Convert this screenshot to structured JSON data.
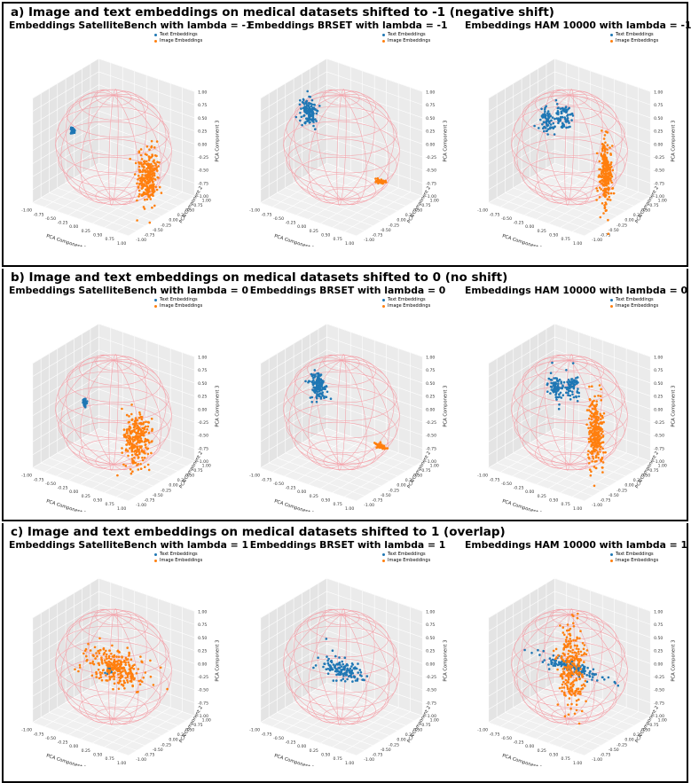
{
  "rows": [
    {
      "title": "a) Image and text embeddings on medical datasets shifted to -1  (negative shift)",
      "plots": [
        {
          "title": "Embeddings  SatelliteBench with lambda = -1",
          "text_center": [
            -0.85,
            0.0,
            0.05
          ],
          "text_spread": [
            0.02,
            0.02,
            0.03
          ],
          "image_center": [
            0.85,
            -0.2,
            -0.25
          ],
          "image_spread": [
            0.07,
            0.12,
            0.25
          ],
          "text_shape": "blob",
          "image_shape": "column"
        },
        {
          "title": "Embeddings  BRSET with lambda = -1",
          "text_center": [
            -0.75,
            0.1,
            0.4
          ],
          "text_spread": [
            0.08,
            0.05,
            0.12
          ],
          "image_center": [
            0.75,
            0.1,
            -0.45
          ],
          "image_spread": [
            0.06,
            0.02,
            0.02
          ],
          "text_shape": "bar",
          "image_shape": "bar"
        },
        {
          "title": "Embeddings  HAM 10000 with lambda = -1",
          "text_center": [
            -0.55,
            0.1,
            0.3
          ],
          "text_spread": [
            0.08,
            0.04,
            0.12
          ],
          "image_center": [
            0.75,
            0.0,
            -0.25
          ],
          "image_spread": [
            0.05,
            0.05,
            0.3
          ],
          "text_shape": "twobars",
          "image_shape": "column"
        }
      ]
    },
    {
      "title": "b) Image and text embeddings on medical datasets shifted to 0 (no shift)",
      "plots": [
        {
          "title": "Embeddings  SatelliteBench with lambda = 0",
          "text_center": [
            -0.6,
            0.0,
            0.0
          ],
          "text_spread": [
            0.02,
            0.02,
            0.03
          ],
          "image_center": [
            0.55,
            -0.1,
            -0.3
          ],
          "image_spread": [
            0.12,
            0.1,
            0.25
          ],
          "text_shape": "blob",
          "image_shape": "column"
        },
        {
          "title": "Embeddings  BRSET with lambda = 0",
          "text_center": [
            -0.55,
            0.1,
            0.3
          ],
          "text_spread": [
            0.08,
            0.05,
            0.13
          ],
          "image_center": [
            0.75,
            0.1,
            -0.45
          ],
          "image_spread": [
            0.06,
            0.02,
            0.02
          ],
          "text_shape": "bar",
          "image_shape": "bar"
        },
        {
          "title": "Embeddings  HAM 10000 with lambda = 0",
          "text_center": [
            -0.35,
            0.1,
            0.3
          ],
          "text_spread": [
            0.08,
            0.04,
            0.13
          ],
          "image_center": [
            0.55,
            0.0,
            -0.2
          ],
          "image_spread": [
            0.07,
            0.06,
            0.35
          ],
          "text_shape": "twobars",
          "image_shape": "column"
        }
      ]
    },
    {
      "title": "c) Image and text embeddings on medical datasets shifted to 1 (overlap)",
      "plots": [
        {
          "title": "Embeddings  SatelliteBench with lambda = 1",
          "text_center": [
            -0.1,
            0.0,
            -0.1
          ],
          "text_spread": [
            0.02,
            0.02,
            0.03
          ],
          "image_center": [
            0.05,
            0.0,
            0.0
          ],
          "image_spread": [
            0.3,
            0.1,
            0.15
          ],
          "text_shape": "blob",
          "image_shape": "wide"
        },
        {
          "title": "Embeddings  BRSET with lambda = 1",
          "text_center": [
            0.0,
            0.0,
            -0.05
          ],
          "text_spread": [
            0.22,
            0.05,
            0.1
          ],
          "image_center": [
            0.0,
            0.0,
            -0.05
          ],
          "image_spread": [
            0.0,
            0.0,
            0.0
          ],
          "text_shape": "wide",
          "image_shape": "none"
        },
        {
          "title": "Embeddings  HAM 10000 with lambda = 1",
          "text_center": [
            0.05,
            0.0,
            0.0
          ],
          "text_spread": [
            0.35,
            0.03,
            0.06
          ],
          "image_center": [
            0.05,
            0.0,
            0.05
          ],
          "image_spread": [
            0.12,
            0.1,
            0.38
          ],
          "text_shape": "wide",
          "image_shape": "column"
        }
      ]
    }
  ],
  "legend": {
    "text": "Text Embeddings",
    "image": "Image Embeddings"
  },
  "colors": {
    "text": "#1f77b4",
    "image": "#ff7f0e",
    "sphere": "#f4a0a8",
    "pane": "#ebebeb"
  },
  "chart_data": {
    "type": "scatter",
    "axis_labels": {
      "x": "PCA Component 1",
      "y": "PCA Component 2",
      "z": "PCA Component 3"
    },
    "x_ticks": [
      "-1.00",
      "-0.75",
      "-0.50",
      "-0.25",
      "0.00",
      "0.25",
      "0.50",
      "0.75",
      "1.00"
    ],
    "y_ticks": [
      "-1.00",
      "-0.75",
      "-0.50",
      "-0.25",
      "0.00",
      "0.25",
      "0.50",
      "0.75",
      "1.00"
    ],
    "z_ticks": [
      "-1.00",
      "-0.75",
      "-0.50",
      "-0.25",
      "0.00",
      "0.25",
      "0.50",
      "0.75",
      "1.00"
    ],
    "xlim": [
      -1,
      1
    ],
    "ylim": [
      -1,
      1
    ],
    "zlim": [
      -1,
      1
    ],
    "series": [
      {
        "name": "Text Embeddings"
      },
      {
        "name": "Image Embeddings"
      }
    ],
    "sphere": "unit sphere wireframe",
    "legend_position": "top-center"
  }
}
